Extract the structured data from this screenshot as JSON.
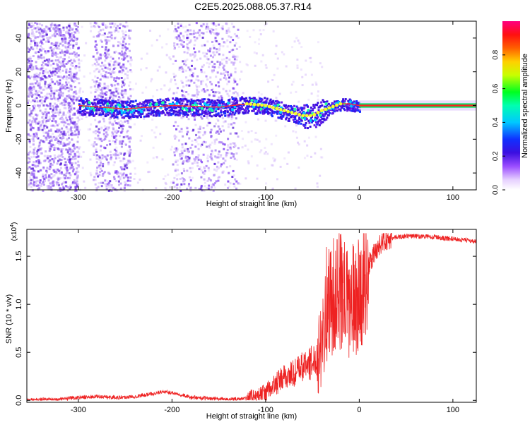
{
  "figure": {
    "title": "C2E5.2025.088.05.37.R14"
  },
  "chart_data": [
    {
      "type": "heatmap",
      "name": "spectrogram",
      "xlabel": "Height of straight line (km)",
      "ylabel": "Frequency (Hz)",
      "xlim": [
        -355,
        125
      ],
      "ylim": [
        -50,
        50
      ],
      "xticks": [
        -300,
        -200,
        -100,
        0,
        100
      ],
      "yticks": [
        -40,
        -20,
        0,
        20,
        40
      ],
      "colorbar": {
        "label": "Normalized spectral amplitude",
        "range": [
          0,
          1
        ],
        "ticks": [
          "0.0",
          "0.2",
          "0.4",
          "0.6",
          "0.8"
        ],
        "colormap": "rainbow (white–violet–blue–cyan–green–yellow–orange–red–magenta)"
      },
      "ridge": {
        "description": "dominant Doppler frequency vs height",
        "x": [
          -300,
          -250,
          -200,
          -150,
          -120,
          -100,
          -80,
          -60,
          -50,
          -40,
          -30,
          -20,
          -10,
          0,
          50,
          125
        ],
        "y": [
          0,
          -2,
          0,
          -1,
          1,
          0,
          -3,
          -6,
          -6,
          -3,
          -1,
          1,
          1,
          0,
          0,
          0
        ]
      },
      "background_noise_bands_km": [
        [
          -355,
          -300
        ],
        [
          -285,
          -245
        ],
        [
          -200,
          -130
        ]
      ]
    },
    {
      "type": "line",
      "name": "snr",
      "xlabel": "Height of straight line (km)",
      "ylabel": "SNR (10 * v/v)",
      "y_multiplier": "(x10",
      "y_multiplier_exp": "4",
      "xlim": [
        -355,
        125
      ],
      "ylim": [
        -0.02,
        1.78
      ],
      "xticks": [
        -300,
        -200,
        -100,
        0,
        100
      ],
      "yticks": [
        "0.0",
        "0.5",
        "1.0",
        "1.5"
      ],
      "series_color": "#ee2222",
      "x": [
        -355,
        -340,
        -320,
        -300,
        -280,
        -260,
        -240,
        -220,
        -210,
        -200,
        -190,
        -180,
        -160,
        -140,
        -120,
        -110,
        -100,
        -90,
        -80,
        -70,
        -60,
        -50,
        -45,
        -40,
        -35,
        -30,
        -25,
        -20,
        -15,
        -10,
        -5,
        0,
        10,
        20,
        30,
        40,
        50,
        60,
        80,
        100,
        120,
        125
      ],
      "y": [
        0.0,
        0.01,
        0.01,
        0.03,
        0.04,
        0.03,
        0.04,
        0.07,
        0.09,
        0.08,
        0.06,
        0.03,
        0.02,
        0.01,
        0.02,
        0.04,
        0.08,
        0.16,
        0.24,
        0.28,
        0.35,
        0.4,
        0.45,
        0.7,
        1.0,
        1.05,
        1.1,
        1.15,
        1.05,
        1.0,
        1.05,
        1.1,
        1.4,
        1.6,
        1.68,
        1.7,
        1.71,
        1.71,
        1.7,
        1.68,
        1.66,
        1.65
      ]
    }
  ]
}
